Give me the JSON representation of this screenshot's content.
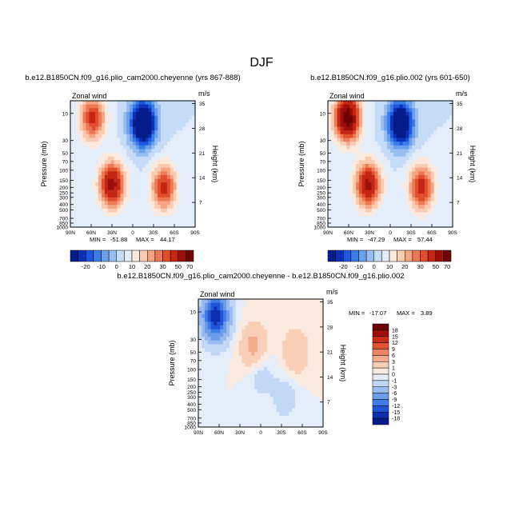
{
  "page": {
    "title": "DJF"
  },
  "chart_data": [
    {
      "type": "heatmap",
      "title": "b.e12.B1850CN.f09_g16.plio_cam2000.cheyenne (yrs 867-888)",
      "variable": "Zonal wind",
      "units": "m/s",
      "ylabel": "Pressure (mb)",
      "ylabel_right": "Height (km)",
      "x_ticks": [
        "90N",
        "60N",
        "30N",
        "0",
        "30S",
        "60S",
        "90S"
      ],
      "y_ticks": [
        "10",
        "30",
        "50",
        "70",
        "100",
        "150",
        "200",
        "250",
        "300",
        "400",
        "500",
        "700",
        "850",
        "1000"
      ],
      "y_right_ticks": [
        "35",
        "28",
        "21",
        "14",
        "7"
      ],
      "stats": {
        "min_label": "MIN =",
        "min": "-51.88",
        "max_label": "MAX =",
        "max": "44.17"
      },
      "fields": [
        {
          "lat": 58,
          "p": 12,
          "value": 32
        },
        {
          "lat": 30,
          "p": 180,
          "value": 44
        },
        {
          "lat": -15,
          "p": 15,
          "value": -52
        },
        {
          "lat": -45,
          "p": 200,
          "value": 33
        }
      ]
    },
    {
      "type": "heatmap",
      "title": "b.e12.B1850CN.f09_g16.plio.002 (yrs 601-650)",
      "variable": "Zonal wind",
      "units": "m/s",
      "ylabel": "Pressure (mb)",
      "ylabel_right": "Height (km)",
      "x_ticks": [
        "90N",
        "60N",
        "30N",
        "0",
        "30S",
        "60S",
        "90S"
      ],
      "y_ticks": [
        "10",
        "30",
        "50",
        "70",
        "100",
        "150",
        "200",
        "250",
        "300",
        "400",
        "500",
        "700",
        "850",
        "1000"
      ],
      "y_right_ticks": [
        "35",
        "28",
        "21",
        "14",
        "7"
      ],
      "stats": {
        "min_label": "MIN =",
        "min": "-47.29",
        "max_label": "MAX =",
        "max": "57.44"
      },
      "fields": [
        {
          "lat": 62,
          "p": 12,
          "value": 57
        },
        {
          "lat": 32,
          "p": 180,
          "value": 42
        },
        {
          "lat": -15,
          "p": 15,
          "value": -47
        },
        {
          "lat": -45,
          "p": 200,
          "value": 34
        }
      ]
    },
    {
      "type": "heatmap",
      "title": "b.e12.B1850CN.f09_g16.plio_cam2000.cheyenne - b.e12.B1850CN.f09_g16.plio.002",
      "variable": "Zonal wind",
      "units": "m/s",
      "ylabel": "Pressure (mb)",
      "ylabel_right": "Height (km)",
      "x_ticks": [
        "90N",
        "60N",
        "30N",
        "0",
        "30S",
        "60S",
        "90S"
      ],
      "y_ticks": [
        "10",
        "30",
        "50",
        "70",
        "100",
        "150",
        "200",
        "250",
        "300",
        "400",
        "500",
        "700",
        "850",
        "1000"
      ],
      "y_right_ticks": [
        "35",
        "28",
        "21",
        "14",
        "7"
      ],
      "stats": {
        "min_label": "MIN =",
        "min": "-17.07",
        "max_label": "MAX =",
        "max": "3.89"
      },
      "fields": [
        {
          "lat": 65,
          "p": 12,
          "value": -17
        },
        {
          "lat": 10,
          "p": 40,
          "value": 4
        },
        {
          "lat": -50,
          "p": 50,
          "value": 3
        },
        {
          "lat": 0,
          "p": 120,
          "value": -2
        },
        {
          "lat": -35,
          "p": 300,
          "value": -2
        }
      ]
    }
  ],
  "colorbar_abs": {
    "labels": [
      "-20",
      "-10",
      "0",
      "10",
      "20",
      "30",
      "50",
      "70"
    ],
    "colors": [
      "#041c8a",
      "#0d30b8",
      "#1f56e0",
      "#3b7de8",
      "#6a9fec",
      "#98bdf0",
      "#c6dcf6",
      "#e4eefb",
      "#fbe9de",
      "#f9cbb1",
      "#f5a581",
      "#ee7a55",
      "#e04e2e",
      "#c52613",
      "#9e0e0a",
      "#6e0303"
    ]
  },
  "colorbar_diff": {
    "labels": [
      "18",
      "15",
      "12",
      "9",
      "6",
      "3",
      "1",
      "0",
      "-1",
      "-3",
      "-6",
      "-9",
      "-12",
      "-15",
      "-18"
    ],
    "colors": [
      "#6e0303",
      "#a20e0a",
      "#c92d16",
      "#e25533",
      "#f08363",
      "#f6ab8e",
      "#f9cfb7",
      "#fbeadf",
      "#e4eefb",
      "#c3d8f5",
      "#99bbef",
      "#6c9cea",
      "#3f7de6",
      "#1f55d6",
      "#0c2fb0",
      "#041c8a"
    ]
  }
}
